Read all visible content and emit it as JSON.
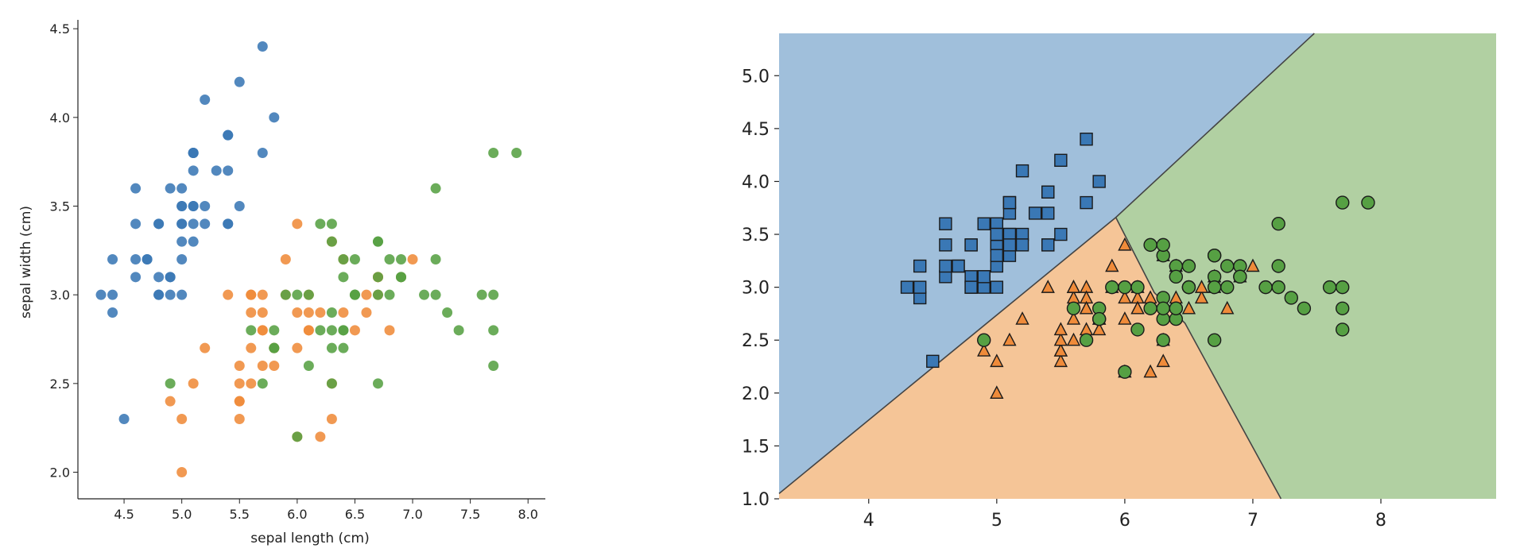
{
  "colors": {
    "setosa": "#3a78b5",
    "versicolor": "#ef8b3a",
    "virginica": "#56a043",
    "region_setosa": "#a0bfdb",
    "region_versicolor": "#f5c597",
    "region_virginica": "#b1d0a2",
    "axis": "#222222"
  },
  "chart_data": [
    {
      "type": "scatter",
      "title": "",
      "xlabel": "sepal length (cm)",
      "ylabel": "sepal width (cm)",
      "xlim": [
        4.1,
        8.15
      ],
      "ylim": [
        1.85,
        4.55
      ],
      "xticks": [
        "4.5",
        "5.0",
        "5.5",
        "6.0",
        "6.5",
        "7.0",
        "7.5",
        "8.0"
      ],
      "yticks": [
        "2.0",
        "2.5",
        "3.0",
        "3.5",
        "4.0",
        "4.5"
      ],
      "grid": false,
      "series": [
        {
          "color_key": "setosa",
          "points": [
            [
              5.1,
              3.5
            ],
            [
              4.9,
              3.0
            ],
            [
              4.7,
              3.2
            ],
            [
              4.6,
              3.1
            ],
            [
              5.0,
              3.6
            ],
            [
              5.4,
              3.9
            ],
            [
              4.6,
              3.4
            ],
            [
              5.0,
              3.4
            ],
            [
              4.4,
              2.9
            ],
            [
              4.9,
              3.1
            ],
            [
              5.4,
              3.7
            ],
            [
              4.8,
              3.4
            ],
            [
              4.8,
              3.0
            ],
            [
              4.3,
              3.0
            ],
            [
              5.8,
              4.0
            ],
            [
              5.7,
              4.4
            ],
            [
              5.4,
              3.9
            ],
            [
              5.1,
              3.5
            ],
            [
              5.7,
              3.8
            ],
            [
              5.1,
              3.8
            ],
            [
              5.4,
              3.4
            ],
            [
              5.1,
              3.7
            ],
            [
              4.6,
              3.6
            ],
            [
              5.1,
              3.3
            ],
            [
              4.8,
              3.4
            ],
            [
              5.0,
              3.0
            ],
            [
              5.0,
              3.4
            ],
            [
              5.2,
              3.5
            ],
            [
              5.2,
              3.4
            ],
            [
              4.7,
              3.2
            ],
            [
              4.8,
              3.1
            ],
            [
              5.4,
              3.4
            ],
            [
              5.2,
              4.1
            ],
            [
              5.5,
              4.2
            ],
            [
              4.9,
              3.1
            ],
            [
              5.0,
              3.2
            ],
            [
              5.5,
              3.5
            ],
            [
              4.9,
              3.6
            ],
            [
              4.4,
              3.0
            ],
            [
              5.1,
              3.4
            ],
            [
              5.0,
              3.5
            ],
            [
              4.5,
              2.3
            ],
            [
              4.4,
              3.2
            ],
            [
              5.0,
              3.5
            ],
            [
              5.1,
              3.8
            ],
            [
              4.8,
              3.0
            ],
            [
              5.1,
              3.8
            ],
            [
              4.6,
              3.2
            ],
            [
              5.3,
              3.7
            ],
            [
              5.0,
              3.3
            ]
          ]
        },
        {
          "color_key": "versicolor",
          "points": [
            [
              7.0,
              3.2
            ],
            [
              6.4,
              3.2
            ],
            [
              6.9,
              3.1
            ],
            [
              5.5,
              2.3
            ],
            [
              6.5,
              2.8
            ],
            [
              5.7,
              2.8
            ],
            [
              6.3,
              3.3
            ],
            [
              4.9,
              2.4
            ],
            [
              6.6,
              2.9
            ],
            [
              5.2,
              2.7
            ],
            [
              5.0,
              2.0
            ],
            [
              5.9,
              3.0
            ],
            [
              6.0,
              2.2
            ],
            [
              6.1,
              2.9
            ],
            [
              5.6,
              2.9
            ],
            [
              6.7,
              3.1
            ],
            [
              5.6,
              3.0
            ],
            [
              5.8,
              2.7
            ],
            [
              6.2,
              2.2
            ],
            [
              5.6,
              2.5
            ],
            [
              5.9,
              3.2
            ],
            [
              6.1,
              2.8
            ],
            [
              6.3,
              2.5
            ],
            [
              6.1,
              2.8
            ],
            [
              6.4,
              2.9
            ],
            [
              6.6,
              3.0
            ],
            [
              6.8,
              2.8
            ],
            [
              6.7,
              3.0
            ],
            [
              6.0,
              2.9
            ],
            [
              5.7,
              2.6
            ],
            [
              5.5,
              2.4
            ],
            [
              5.5,
              2.4
            ],
            [
              5.8,
              2.7
            ],
            [
              6.0,
              2.7
            ],
            [
              5.4,
              3.0
            ],
            [
              6.0,
              3.4
            ],
            [
              6.7,
              3.1
            ],
            [
              6.3,
              2.3
            ],
            [
              5.6,
              3.0
            ],
            [
              5.5,
              2.5
            ],
            [
              5.5,
              2.6
            ],
            [
              6.1,
              3.0
            ],
            [
              5.8,
              2.6
            ],
            [
              5.0,
              2.3
            ],
            [
              5.6,
              2.7
            ],
            [
              5.7,
              3.0
            ],
            [
              5.7,
              2.9
            ],
            [
              6.2,
              2.9
            ],
            [
              5.1,
              2.5
            ],
            [
              5.7,
              2.8
            ]
          ]
        },
        {
          "color_key": "virginica",
          "points": [
            [
              6.3,
              3.3
            ],
            [
              5.8,
              2.7
            ],
            [
              7.1,
              3.0
            ],
            [
              6.3,
              2.9
            ],
            [
              6.5,
              3.0
            ],
            [
              7.6,
              3.0
            ],
            [
              4.9,
              2.5
            ],
            [
              7.3,
              2.9
            ],
            [
              6.7,
              2.5
            ],
            [
              7.2,
              3.6
            ],
            [
              6.5,
              3.2
            ],
            [
              6.4,
              2.7
            ],
            [
              6.8,
              3.0
            ],
            [
              5.7,
              2.5
            ],
            [
              5.8,
              2.8
            ],
            [
              6.4,
              3.2
            ],
            [
              6.5,
              3.0
            ],
            [
              7.7,
              3.8
            ],
            [
              7.7,
              2.6
            ],
            [
              6.0,
              2.2
            ],
            [
              6.9,
              3.2
            ],
            [
              5.6,
              2.8
            ],
            [
              7.7,
              2.8
            ],
            [
              6.3,
              2.7
            ],
            [
              6.7,
              3.3
            ],
            [
              7.2,
              3.2
            ],
            [
              6.2,
              2.8
            ],
            [
              6.1,
              3.0
            ],
            [
              6.4,
              2.8
            ],
            [
              7.2,
              3.0
            ],
            [
              7.4,
              2.8
            ],
            [
              7.9,
              3.8
            ],
            [
              6.4,
              2.8
            ],
            [
              6.3,
              2.8
            ],
            [
              6.1,
              2.6
            ],
            [
              7.7,
              3.0
            ],
            [
              6.3,
              3.4
            ],
            [
              6.4,
              3.1
            ],
            [
              6.0,
              3.0
            ],
            [
              6.9,
              3.1
            ],
            [
              6.7,
              3.1
            ],
            [
              6.9,
              3.1
            ],
            [
              5.8,
              2.7
            ],
            [
              6.8,
              3.2
            ],
            [
              6.7,
              3.3
            ],
            [
              6.7,
              3.0
            ],
            [
              6.3,
              2.5
            ],
            [
              6.5,
              3.0
            ],
            [
              6.2,
              3.4
            ],
            [
              5.9,
              3.0
            ]
          ]
        }
      ]
    },
    {
      "type": "scatter",
      "title": "",
      "xlabel": "",
      "ylabel": "",
      "xlim": [
        3.3,
        8.9
      ],
      "ylim": [
        1.0,
        5.4
      ],
      "xticks": [
        "4",
        "5",
        "6",
        "7",
        "8"
      ],
      "yticks": [
        "1.0",
        "1.5",
        "2.0",
        "2.5",
        "3.0",
        "3.5",
        "4.0",
        "4.5",
        "5.0"
      ],
      "grid": false,
      "decision_regions": {
        "setosa": [
          [
            3.3,
            1.05
          ],
          [
            5.93,
            3.66
          ],
          [
            7.48,
            5.4
          ],
          [
            3.3,
            5.4
          ]
        ],
        "versicolor": [
          [
            3.3,
            1.0
          ],
          [
            3.3,
            1.05
          ],
          [
            5.93,
            3.66
          ],
          [
            6.23,
            2.95
          ],
          [
            6.47,
            2.66
          ],
          [
            7.22,
            1.0
          ]
        ],
        "virginica": [
          [
            7.22,
            1.0
          ],
          [
            6.47,
            2.66
          ],
          [
            6.23,
            2.95
          ],
          [
            5.93,
            3.66
          ],
          [
            7.48,
            5.4
          ],
          [
            8.9,
            5.4
          ],
          [
            8.9,
            1.0
          ]
        ],
        "boundaries": [
          [
            [
              3.3,
              1.05
            ],
            [
              5.93,
              3.66
            ],
            [
              7.48,
              5.4
            ]
          ],
          [
            [
              5.93,
              3.66
            ],
            [
              6.23,
              2.95
            ],
            [
              6.47,
              2.66
            ],
            [
              7.22,
              1.0
            ]
          ]
        ]
      },
      "series": [
        {
          "color_key": "setosa",
          "marker": "square",
          "same_points_as": 0
        },
        {
          "color_key": "versicolor",
          "marker": "triangle",
          "same_points_as": 1
        },
        {
          "color_key": "virginica",
          "marker": "circle",
          "same_points_as": 2
        }
      ]
    }
  ]
}
